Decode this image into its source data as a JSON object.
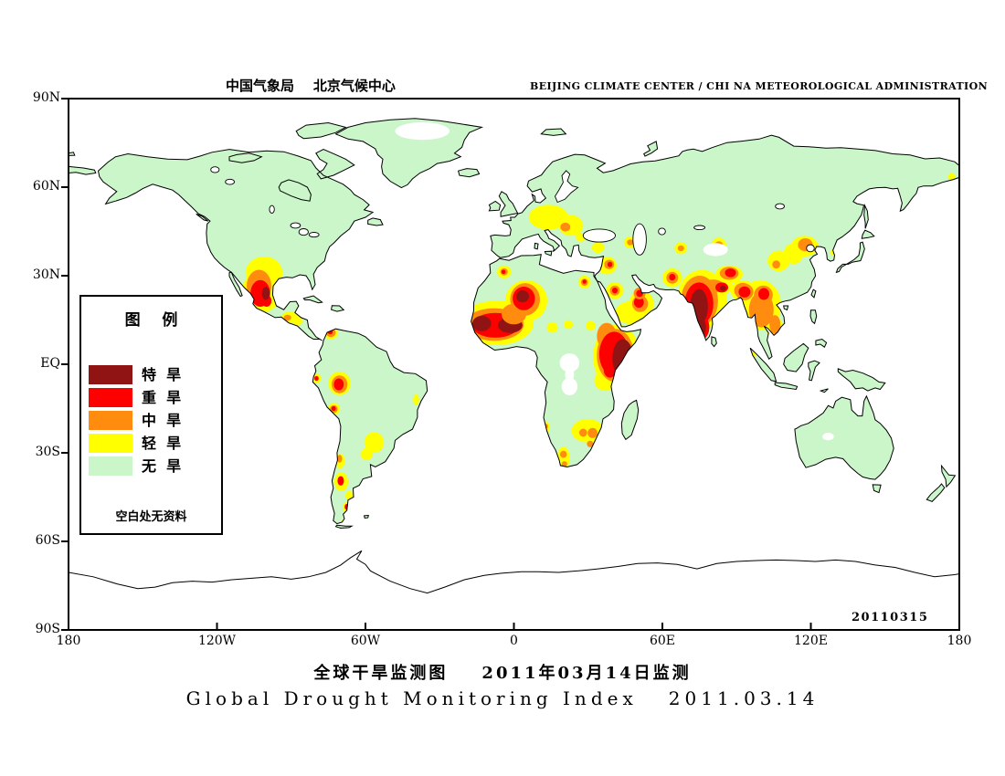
{
  "header": {
    "left": "中国气象局    北京气候中心",
    "right": "BEIJING CLIMATE CENTER / CHI NA METEOROLOGICAL ADMINISTRATION"
  },
  "titles": {
    "chinese": "全球干旱监测图    2011年03月14日监测",
    "english": "Global Drought Monitoring Index   2011.03.14"
  },
  "map": {
    "stamp": "20110315",
    "lat_ticks": [
      {
        "label": "90N",
        "lat": 90
      },
      {
        "label": "60N",
        "lat": 60
      },
      {
        "label": "30N",
        "lat": 30
      },
      {
        "label": "EQ",
        "lat": 0
      },
      {
        "label": "30S",
        "lat": -30
      },
      {
        "label": "60S",
        "lat": -60
      },
      {
        "label": "90S",
        "lat": -90
      }
    ],
    "lon_ticks": [
      {
        "label": "180",
        "lon": -180
      },
      {
        "label": "120W",
        "lon": -120
      },
      {
        "label": "60W",
        "lon": -60
      },
      {
        "label": "0",
        "lon": 0
      },
      {
        "label": "60E",
        "lon": 60
      },
      {
        "label": "120E",
        "lon": 120
      },
      {
        "label": "180",
        "lon": 180
      }
    ]
  },
  "legend": {
    "title": "图    例",
    "no_data_note": "空白处无资料",
    "items": [
      {
        "label": "特  旱",
        "level": "extreme"
      },
      {
        "label": "重  旱",
        "level": "severe"
      },
      {
        "label": "中  旱",
        "level": "moderate"
      },
      {
        "label": "轻  旱",
        "level": "light"
      },
      {
        "label": "无  旱",
        "level": "none"
      }
    ]
  },
  "severity_colors": {
    "extreme": "#911414",
    "severe": "#fd0000",
    "moderate": "#ff8c0e",
    "light": "#ffff00",
    "none": "#caf6ca"
  },
  "drought_regions": [
    {
      "name": "texas-mexico",
      "rings": [
        [
          -101,
          31,
          7.5,
          5.5,
          "light"
        ],
        [
          -102,
          24.5,
          8,
          7,
          "light"
        ],
        [
          -103,
          26.5,
          5,
          5.5,
          "moderate"
        ],
        [
          -102.5,
          24,
          4,
          4.5,
          "severe"
        ],
        [
          -100,
          21.5,
          2,
          2,
          "severe"
        ],
        [
          -100.3,
          24,
          1.6,
          2.2,
          "extreme"
        ]
      ]
    },
    {
      "name": "central-america",
      "rings": [
        [
          -90.5,
          15.8,
          3.5,
          2,
          "light"
        ],
        [
          -91.5,
          15.8,
          1.5,
          1,
          "moderate"
        ],
        [
          -87.5,
          14.5,
          2,
          1.5,
          "light"
        ]
      ]
    },
    {
      "name": "colombia",
      "rings": [
        [
          -74,
          10.7,
          3,
          2.2,
          "light"
        ],
        [
          -74,
          10.7,
          2,
          1.5,
          "moderate"
        ],
        [
          -74.2,
          11,
          1,
          0.9,
          "severe"
        ]
      ]
    },
    {
      "name": "peru-north",
      "rings": [
        [
          -70.5,
          -6.5,
          4.5,
          4,
          "light"
        ],
        [
          -70.5,
          -6.8,
          3.2,
          3,
          "moderate"
        ],
        [
          -70.8,
          -6.8,
          2,
          2,
          "severe"
        ]
      ]
    },
    {
      "name": "peru-coast",
      "rings": [
        [
          -79.8,
          -4.8,
          1.8,
          1.6,
          "light"
        ],
        [
          -79.8,
          -4.8,
          0.9,
          0.8,
          "severe"
        ]
      ]
    },
    {
      "name": "peru-south",
      "rings": [
        [
          -72.8,
          -15.2,
          2.6,
          2,
          "light"
        ],
        [
          -72.8,
          -15.2,
          1.6,
          1.3,
          "moderate"
        ],
        [
          -72.9,
          -15,
          0.9,
          0.8,
          "severe"
        ]
      ]
    },
    {
      "name": "paraguay",
      "rings": [
        [
          -56.5,
          -26.5,
          4,
          3.5,
          "light"
        ],
        [
          -59.5,
          -30.5,
          2.5,
          2,
          "light"
        ]
      ]
    },
    {
      "name": "brazil-east",
      "rings": [
        [
          -39.5,
          -12,
          1.2,
          1.8,
          "light"
        ]
      ]
    },
    {
      "name": "chile-central",
      "rings": [
        [
          -70.2,
          -32.8,
          1.8,
          2.5,
          "light"
        ],
        [
          -70.4,
          -32,
          1,
          1.3,
          "moderate"
        ]
      ]
    },
    {
      "name": "argentina-south",
      "rings": [
        [
          -69.8,
          -39.8,
          2.8,
          3.2,
          "light"
        ],
        [
          -70,
          -39.5,
          1.3,
          1.6,
          "severe"
        ],
        [
          -66.5,
          -44.5,
          1.6,
          1.6,
          "light"
        ],
        [
          -67.6,
          -48.5,
          1.6,
          1.9,
          "light"
        ],
        [
          -67.6,
          -48.3,
          0.8,
          1,
          "severe"
        ],
        [
          -68.5,
          -53.5,
          1.5,
          1,
          "light"
        ]
      ]
    },
    {
      "name": "sahel-west",
      "rings": [
        [
          -7,
          14,
          15,
          7.5,
          "light"
        ],
        [
          -8,
          13.5,
          12,
          5.5,
          "moderate"
        ],
        [
          -7.5,
          13.2,
          9.5,
          4.2,
          "severe"
        ],
        [
          -13,
          13.8,
          3.8,
          2.6,
          "extreme"
        ],
        [
          -1.5,
          13.2,
          5,
          2.6,
          "extreme"
        ]
      ]
    },
    {
      "name": "sahara-central",
      "rings": [
        [
          5,
          21.5,
          8.5,
          7,
          "light"
        ],
        [
          0,
          17,
          5,
          3.5,
          "moderate"
        ],
        [
          4.5,
          22,
          6,
          5.5,
          "moderate"
        ],
        [
          4,
          22.3,
          4.5,
          4,
          "severe"
        ],
        [
          3.5,
          23,
          2.6,
          2,
          "extreme"
        ]
      ]
    },
    {
      "name": "algeria-north",
      "rings": [
        [
          -4,
          31.3,
          2.8,
          2.2,
          "light"
        ],
        [
          -4,
          31.3,
          1.5,
          1.2,
          "moderate"
        ],
        [
          -4.2,
          31.3,
          0.8,
          0.7,
          "severe"
        ]
      ]
    },
    {
      "name": "egypt-south",
      "rings": [
        [
          28.5,
          27.8,
          2.6,
          2.2,
          "light"
        ],
        [
          28.5,
          27.8,
          1.4,
          1.2,
          "moderate"
        ],
        [
          28.5,
          28,
          0.8,
          0.7,
          "severe"
        ]
      ]
    },
    {
      "name": "chad-sudan",
      "rings": [
        [
          15.5,
          12.5,
          2.2,
          1.8,
          "light"
        ],
        [
          22,
          13.5,
          1.8,
          1.5,
          "light"
        ],
        [
          31,
          13,
          2,
          1.6,
          "light"
        ]
      ]
    },
    {
      "name": "horn-of-africa",
      "rings": [
        [
          41.5,
          2.5,
          9.5,
          11,
          "light"
        ],
        [
          37,
          -5.5,
          4.5,
          3.5,
          "light"
        ],
        [
          37.5,
          9.5,
          4,
          4.5,
          "moderate"
        ],
        [
          41,
          3,
          7.5,
          9,
          "moderate"
        ],
        [
          40.5,
          3.5,
          6,
          7.5,
          "severe"
        ],
        [
          38.8,
          -2,
          2.5,
          2.5,
          "severe"
        ],
        [
          44,
          2,
          4.2,
          6.5,
          "extreme"
        ]
      ]
    },
    {
      "name": "southern-africa",
      "rings": [
        [
          29.8,
          -22.5,
          6.5,
          4,
          "light"
        ],
        [
          28,
          -23.2,
          1.6,
          1.4,
          "moderate"
        ],
        [
          31.8,
          -23.3,
          2,
          1.7,
          "moderate"
        ],
        [
          30.8,
          -27,
          1.3,
          1.1,
          "moderate"
        ],
        [
          20,
          -31.8,
          2.6,
          3.8,
          "light"
        ],
        [
          20,
          -30.5,
          1.4,
          1.2,
          "moderate"
        ],
        [
          20.4,
          -33.8,
          1.1,
          1,
          "moderate"
        ],
        [
          13,
          -21.5,
          1.5,
          2,
          "light"
        ],
        [
          13,
          -21,
          0.8,
          0.8,
          "moderate"
        ]
      ]
    },
    {
      "name": "europe-central",
      "rings": [
        [
          14,
          49.8,
          8,
          4.2,
          "light"
        ],
        [
          23,
          47,
          5,
          3.5,
          "light"
        ],
        [
          20.8,
          46.5,
          2,
          1.5,
          "moderate"
        ],
        [
          27,
          43,
          2,
          1.5,
          "light"
        ]
      ]
    },
    {
      "name": "turkey-levant",
      "rings": [
        [
          37.5,
          33.5,
          4,
          3,
          "light"
        ],
        [
          38.5,
          33.8,
          2,
          1.6,
          "moderate"
        ],
        [
          38.8,
          33.8,
          1,
          0.9,
          "severe"
        ],
        [
          34,
          39.5,
          2.5,
          1.8,
          "light"
        ]
      ]
    },
    {
      "name": "caucasus",
      "rings": [
        [
          47,
          41.3,
          2.6,
          2,
          "light"
        ],
        [
          47,
          41.3,
          1.3,
          1,
          "moderate"
        ]
      ]
    },
    {
      "name": "arabia",
      "rings": [
        [
          48,
          17.5,
          7,
          4,
          "light"
        ],
        [
          40.8,
          25,
          3.5,
          2.8,
          "light"
        ],
        [
          40.8,
          25,
          2,
          1.7,
          "moderate"
        ],
        [
          40.8,
          25,
          1.1,
          1,
          "severe"
        ],
        [
          51.5,
          20.5,
          5,
          4.5,
          "light"
        ],
        [
          51,
          20.5,
          3.2,
          2.8,
          "moderate"
        ],
        [
          50.5,
          21,
          2,
          1.9,
          "severe"
        ],
        [
          50.8,
          24,
          2.4,
          2,
          "moderate"
        ],
        [
          50.8,
          24,
          1.4,
          1.2,
          "severe"
        ]
      ]
    },
    {
      "name": "balochistan",
      "rings": [
        [
          64,
          29.3,
          4,
          3.2,
          "light"
        ],
        [
          64,
          29.3,
          2.4,
          2,
          "moderate"
        ],
        [
          64,
          29.5,
          1.3,
          1.1,
          "severe"
        ]
      ]
    },
    {
      "name": "uzbekistan",
      "rings": [
        [
          67.5,
          39.3,
          2.6,
          2,
          "light"
        ],
        [
          67.5,
          39.3,
          1.3,
          1,
          "moderate"
        ]
      ]
    },
    {
      "name": "kazakh-xinjiang",
      "rings": [
        [
          82.8,
          40.5,
          3,
          2.4,
          "light"
        ],
        [
          82.8,
          40.3,
          1.7,
          1.4,
          "moderate"
        ]
      ]
    },
    {
      "name": "india",
      "rings": [
        [
          76,
          22,
          10,
          10,
          "light"
        ],
        [
          82,
          26.5,
          6.5,
          3.2,
          "light"
        ],
        [
          92.5,
          25,
          5,
          3.5,
          "light"
        ],
        [
          75,
          21.5,
          7.5,
          8.5,
          "moderate"
        ],
        [
          80.5,
          26.5,
          4.5,
          2.2,
          "moderate"
        ],
        [
          92.5,
          25,
          3.5,
          2.6,
          "moderate"
        ],
        [
          74.8,
          20.5,
          5.8,
          7.2,
          "severe"
        ],
        [
          76,
          12.5,
          3,
          4,
          "severe"
        ],
        [
          84,
          26,
          2.6,
          1.7,
          "severe"
        ],
        [
          92.5,
          24.8,
          2,
          1.6,
          "severe"
        ],
        [
          74.8,
          19.5,
          3.6,
          6,
          "extreme"
        ],
        [
          75.8,
          12.5,
          1.8,
          3,
          "extreme"
        ],
        [
          84.5,
          25.8,
          1.2,
          0.9,
          "extreme"
        ]
      ]
    },
    {
      "name": "nepal-tibet",
      "rings": [
        [
          87,
          30.5,
          5.5,
          3,
          "light"
        ],
        [
          87,
          30.8,
          3.8,
          2.2,
          "moderate"
        ],
        [
          87.5,
          31,
          2.2,
          1.5,
          "severe"
        ]
      ]
    },
    {
      "name": "indochina",
      "rings": [
        [
          99.5,
          20,
          8.5,
          8.5,
          "light"
        ],
        [
          105.5,
          12,
          3.5,
          4,
          "light"
        ],
        [
          100,
          18.5,
          5,
          6,
          "moderate"
        ],
        [
          100.8,
          23.5,
          3.8,
          3.2,
          "moderate"
        ],
        [
          93.2,
          24.5,
          3.6,
          2.8,
          "moderate"
        ],
        [
          105.5,
          13.5,
          2.2,
          3.2,
          "moderate"
        ],
        [
          101,
          23.8,
          2.2,
          2,
          "severe"
        ],
        [
          93.2,
          24.5,
          2.4,
          1.9,
          "severe"
        ]
      ]
    },
    {
      "name": "china-north",
      "rings": [
        [
          113,
          37.5,
          4,
          3.5,
          "light"
        ],
        [
          117.5,
          40,
          5.5,
          3.5,
          "light"
        ],
        [
          107,
          35,
          4.5,
          3.5,
          "light"
        ],
        [
          117.8,
          40.5,
          3,
          2.2,
          "moderate"
        ],
        [
          106,
          33.8,
          1.6,
          1.4,
          "moderate"
        ]
      ]
    },
    {
      "name": "korea",
      "rings": [
        [
          129,
          37.8,
          1.2,
          1,
          "light"
        ]
      ]
    },
    {
      "name": "chukotka",
      "rings": [
        [
          177,
          63.5,
          1.5,
          1.2,
          "light"
        ]
      ]
    },
    {
      "name": "sumatra",
      "rings": [
        [
          97,
          3.5,
          1,
          1,
          "light"
        ]
      ]
    }
  ]
}
